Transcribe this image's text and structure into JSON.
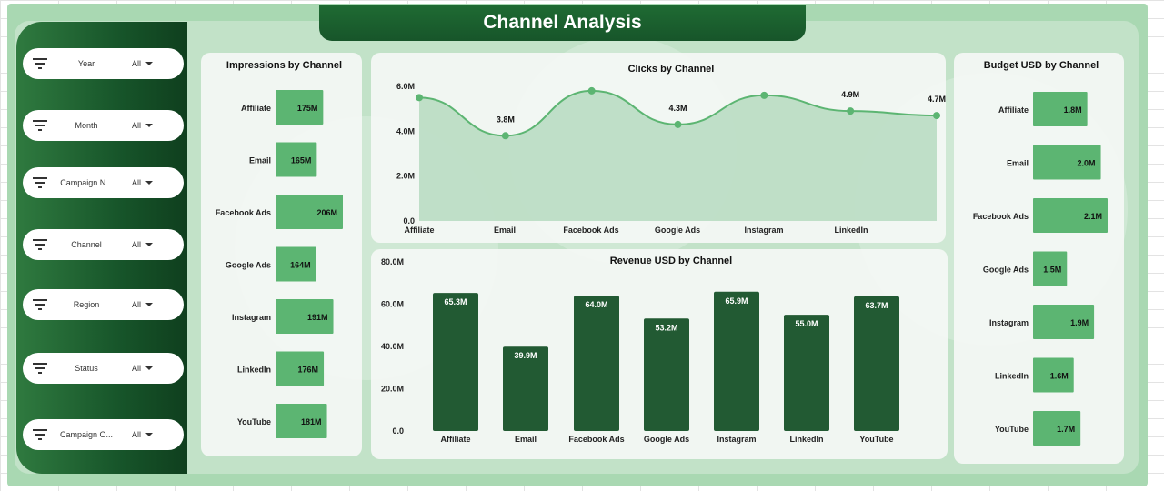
{
  "title": "Channel Analysis",
  "filters": [
    {
      "label": "Year",
      "value": "All"
    },
    {
      "label": "Month",
      "value": "All"
    },
    {
      "label": "Campaign N...",
      "value": "All"
    },
    {
      "label": "Channel",
      "value": "All"
    },
    {
      "label": "Region",
      "value": "All"
    },
    {
      "label": "Status",
      "value": "All"
    },
    {
      "label": "Campaign O...",
      "value": "All"
    }
  ],
  "colors": {
    "bar_light": "#5cb572",
    "bar_dark": "#225a33",
    "line": "#5cb572",
    "area": "#b6dbbf",
    "sidebar": "#17552a"
  },
  "chart_data": [
    {
      "id": "impressions",
      "type": "bar",
      "orientation": "horizontal",
      "title": "Impressions by Channel",
      "categories": [
        "Affiliate",
        "Email",
        "Facebook Ads",
        "Google Ads",
        "Instagram",
        "LinkedIn",
        "YouTube"
      ],
      "values": [
        175,
        165,
        206,
        164,
        191,
        176,
        181
      ],
      "labels": [
        "175M",
        "165M",
        "206M",
        "164M",
        "191M",
        "176M",
        "181M"
      ],
      "unit": "M"
    },
    {
      "id": "clicks",
      "type": "area",
      "title": "Clicks by Channel",
      "categories": [
        "Affiliate",
        "Email",
        "Facebook Ads",
        "Google Ads",
        "Instagram",
        "LinkedIn",
        ""
      ],
      "values": [
        5.5,
        3.8,
        5.8,
        4.3,
        5.6,
        4.9,
        4.7
      ],
      "labels": [
        "",
        "3.8M",
        "",
        "4.3M",
        "",
        "4.9M",
        "4.7M"
      ],
      "yticks": [
        "0.0",
        "2.0M",
        "4.0M",
        "6.0M"
      ],
      "ylim": [
        0,
        6
      ]
    },
    {
      "id": "revenue",
      "type": "bar",
      "orientation": "vertical",
      "title": "Revenue USD by Channel",
      "categories": [
        "Affiliate",
        "Email",
        "Facebook Ads",
        "Google Ads",
        "Instagram",
        "LinkedIn",
        "YouTube"
      ],
      "values": [
        65.3,
        39.9,
        64.0,
        53.2,
        65.9,
        55.0,
        63.7
      ],
      "labels": [
        "65.3M",
        "39.9M",
        "64.0M",
        "53.2M",
        "65.9M",
        "55.0M",
        "63.7M"
      ],
      "yticks": [
        "0.0",
        "20.0M",
        "40.0M",
        "60.0M",
        "80.0M"
      ],
      "ylim": [
        0,
        80
      ]
    },
    {
      "id": "budget",
      "type": "bar",
      "orientation": "horizontal",
      "title": "Budget USD by Channel",
      "categories": [
        "Affiliate",
        "Email",
        "Facebook Ads",
        "Google Ads",
        "Instagram",
        "LinkedIn",
        "YouTube"
      ],
      "values": [
        1.8,
        2.0,
        2.1,
        1.5,
        1.9,
        1.6,
        1.7
      ],
      "labels": [
        "1.8M",
        "2.0M",
        "2.1M",
        "1.5M",
        "1.9M",
        "1.6M",
        "1.7M"
      ]
    }
  ]
}
